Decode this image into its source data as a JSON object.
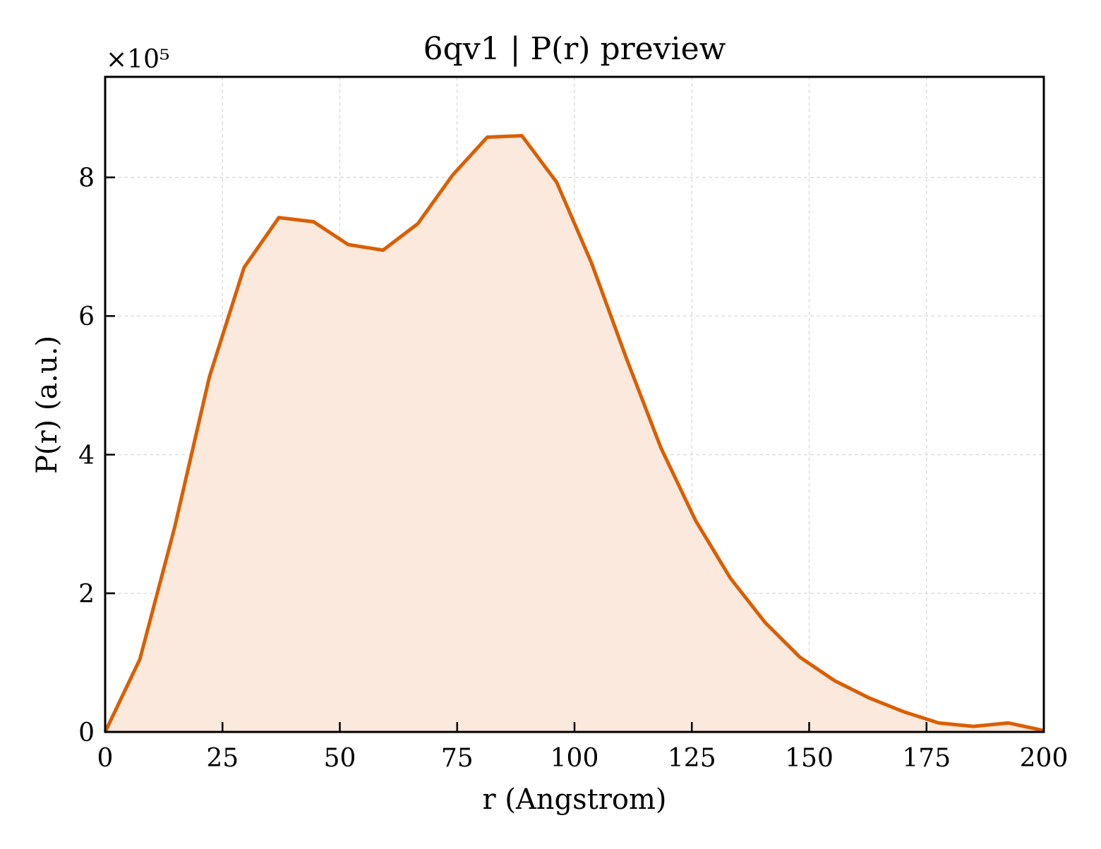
{
  "chart_data": {
    "type": "area",
    "title": "6qv1 | P(r) preview",
    "xlabel": "r (Angstrom)",
    "ylabel": "P(r) (a.u.)",
    "y_scale_label": "×10⁵",
    "xlim": [
      0,
      200
    ],
    "ylim": [
      0,
      9.45
    ],
    "x_ticks": [
      0,
      25,
      50,
      75,
      100,
      125,
      150,
      175,
      200
    ],
    "y_ticks": [
      0,
      2,
      4,
      6,
      8
    ],
    "grid": true,
    "legend": "none",
    "colors": {
      "line": "#d95f02",
      "fill": "#fae9dc",
      "grid": "#d9d9d9",
      "axis": "#000000"
    },
    "series": [
      {
        "x": [
          0,
          7.4,
          14.8,
          22.2,
          29.6,
          37.0,
          44.4,
          51.8,
          59.2,
          66.6,
          74.0,
          81.4,
          88.8,
          96.2,
          103.6,
          111.0,
          118.4,
          125.8,
          133.2,
          140.6,
          148.0,
          155.4,
          162.8,
          170.2,
          177.6,
          185.0,
          192.4,
          200.0
        ],
        "y": [
          0.0,
          1.05,
          2.95,
          5.12,
          6.7,
          7.42,
          7.36,
          7.03,
          6.95,
          7.33,
          8.03,
          8.58,
          8.6,
          7.93,
          6.77,
          5.4,
          4.1,
          3.05,
          2.22,
          1.58,
          1.08,
          0.74,
          0.49,
          0.29,
          0.13,
          0.08,
          0.13,
          0.02
        ]
      }
    ]
  }
}
